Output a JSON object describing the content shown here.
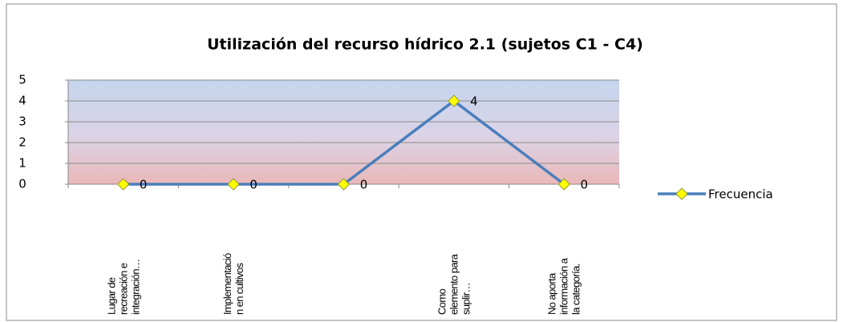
{
  "chart_data": {
    "type": "line",
    "title": "Utilización del recurso hídrico 2.1 (sujetos C1 - C4)",
    "categories": [
      "Lugar de\nrecreación e\nintegración…",
      "Implementació\nn en cultivos",
      null,
      "Como\nelemento para\nsuplir…",
      "No aporta\ninformación a\nla categoría."
    ],
    "series": [
      {
        "name": "Frecuencia",
        "color": "#4a7ebb",
        "values": [
          0,
          0,
          0,
          4,
          0
        ]
      }
    ],
    "ylim": [
      0,
      5
    ],
    "yticks": [
      0,
      1,
      2,
      3,
      4,
      5
    ],
    "grid": true,
    "legend": "right"
  }
}
